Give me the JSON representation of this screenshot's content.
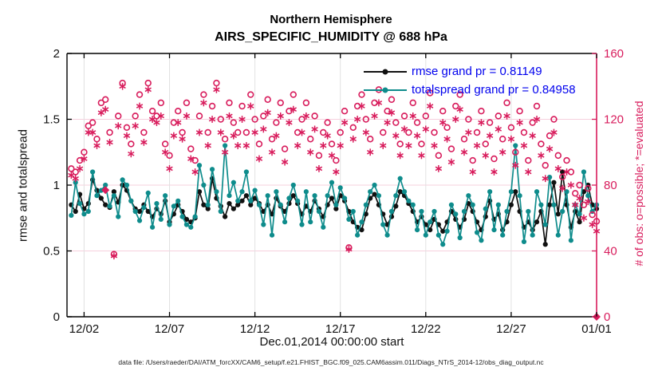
{
  "title": {
    "line1": "Northern Hemisphere",
    "line2": "AIRS_SPECIFIC_HUMIDITY @ 688 hPa"
  },
  "axes": {
    "x_label": "Dec.01,2014 00:00:00 start",
    "left_label": "rmse and totalspread",
    "right_label": "# of obs: o=possible; *=evaluated"
  },
  "legend": {
    "items": [
      {
        "label": "rmse grand pr = 0.81149"
      },
      {
        "label": "totalspread grand pr = 0.84958"
      }
    ]
  },
  "footer": {
    "text": "data file: /Users/raeder/DAI/ATM_forcXX/CAM6_setup/f.e21.FHIST_BGC.f09_025.CAM6assim.011/Diags_NTrS_2014-12/obs_diag_output.nc"
  },
  "colors": {
    "rmse": "#111111",
    "totalspread": "#0e8c8c",
    "obs": "#d81c5c",
    "legend_text": "#0000ee",
    "grid_horizontal": "#f6d0dd",
    "grid_vertical": "#e2e2e2",
    "spine": "#000000"
  },
  "chart_data": {
    "type": "line",
    "title": "Northern Hemisphere — AIRS_SPECIFIC_HUMIDITY @ 688 hPa",
    "xlabel": "Dec.01,2014 00:00:00 start",
    "ylabel_left": "rmse and totalspread",
    "ylabel_right": "# of obs: o=possible; *=evaluated",
    "xlim": [
      0,
      31
    ],
    "ylim_left": [
      0,
      2
    ],
    "ylim_right": [
      0,
      160
    ],
    "grid": true,
    "legend_position": "upper right, no box",
    "x_ticks": [
      {
        "t": 1,
        "label": "12/02"
      },
      {
        "t": 6,
        "label": "12/07"
      },
      {
        "t": 11,
        "label": "12/12"
      },
      {
        "t": 16,
        "label": "12/17"
      },
      {
        "t": 21,
        "label": "12/22"
      },
      {
        "t": 26,
        "label": "12/27"
      },
      {
        "t": 31,
        "label": "01/01"
      }
    ],
    "y_ticks_left": [
      {
        "v": 0,
        "label": "0"
      },
      {
        "v": 0.5,
        "label": "0.5"
      },
      {
        "v": 1,
        "label": "1"
      },
      {
        "v": 1.5,
        "label": "1.5"
      },
      {
        "v": 2,
        "label": "2"
      }
    ],
    "y_ticks_right": [
      {
        "v": 0,
        "label": "0"
      },
      {
        "v": 40,
        "label": "40"
      },
      {
        "v": 80,
        "label": "80"
      },
      {
        "v": 120,
        "label": "120"
      },
      {
        "v": 160,
        "label": "160"
      }
    ],
    "t_start": 0.25,
    "t_step": 0.25,
    "series": [
      {
        "name": "rmse grand pr = 0.81149",
        "axis": "left",
        "marker": "dot",
        "style": "line",
        "values": [
          0.85,
          0.8,
          0.93,
          0.82,
          0.86,
          1.04,
          0.96,
          0.9,
          0.85,
          0.83,
          0.95,
          0.87,
          1.0,
          0.96,
          0.88,
          0.82,
          0.8,
          0.85,
          0.8,
          0.76,
          0.82,
          0.78,
          0.88,
          0.72,
          0.78,
          0.85,
          0.8,
          0.74,
          0.72,
          0.75,
          0.95,
          0.85,
          0.82,
          1.05,
          0.9,
          0.84,
          0.76,
          0.86,
          0.82,
          0.85,
          0.88,
          0.92,
          0.85,
          0.9,
          0.86,
          0.8,
          0.85,
          0.78,
          0.9,
          0.84,
          0.8,
          0.86,
          0.92,
          0.86,
          0.78,
          0.84,
          0.8,
          0.88,
          0.82,
          0.76,
          0.85,
          0.9,
          0.82,
          0.92,
          0.88,
          0.8,
          0.72,
          0.68,
          0.66,
          0.78,
          0.9,
          0.93,
          0.85,
          0.78,
          0.7,
          0.76,
          0.84,
          0.95,
          0.92,
          0.86,
          0.8,
          0.72,
          0.76,
          0.7,
          0.66,
          0.74,
          0.7,
          0.65,
          0.72,
          0.8,
          0.74,
          0.68,
          0.74,
          0.86,
          0.8,
          0.72,
          0.66,
          0.76,
          0.88,
          0.74,
          0.78,
          0.66,
          0.72,
          0.85,
          0.95,
          0.8,
          0.68,
          0.72,
          0.66,
          0.72,
          0.8,
          0.55,
          0.85,
          1.02,
          0.78,
          1.1,
          0.85,
          0.68,
          0.8,
          0.72,
          0.95,
          1.0,
          0.85,
          0.82
        ]
      },
      {
        "name": "totalspread grand pr = 0.84958",
        "axis": "left",
        "marker": "dot",
        "style": "line",
        "values": [
          0.77,
          1.02,
          0.86,
          0.78,
          0.8,
          1.1,
          0.92,
          0.96,
          1.0,
          0.84,
          0.92,
          0.76,
          1.04,
          1.0,
          0.88,
          0.8,
          0.73,
          0.83,
          0.94,
          0.68,
          0.86,
          0.74,
          0.92,
          0.7,
          0.84,
          0.88,
          0.76,
          0.7,
          0.68,
          0.76,
          1.15,
          1.0,
          0.85,
          1.12,
          0.95,
          0.8,
          1.3,
          0.92,
          1.02,
          0.88,
          0.95,
          1.1,
          0.88,
          0.96,
          0.85,
          0.7,
          0.92,
          0.62,
          0.95,
          0.85,
          0.72,
          0.9,
          1.0,
          0.88,
          0.7,
          0.95,
          0.72,
          0.92,
          0.8,
          0.68,
          0.92,
          1.02,
          0.85,
          0.98,
          0.9,
          0.74,
          0.8,
          0.62,
          0.72,
          0.85,
          0.95,
          1.0,
          0.92,
          0.7,
          0.62,
          0.8,
          0.92,
          1.05,
          0.95,
          0.88,
          0.85,
          0.66,
          0.8,
          0.62,
          0.72,
          0.8,
          0.62,
          0.55,
          0.65,
          0.85,
          0.78,
          0.6,
          0.8,
          0.92,
          0.85,
          0.64,
          0.58,
          0.82,
          0.95,
          0.66,
          0.85,
          0.62,
          0.8,
          0.95,
          1.3,
          0.92,
          0.57,
          0.8,
          0.62,
          0.95,
          0.85,
          0.7,
          1.06,
          0.85,
          0.62,
          0.8,
          0.95,
          0.58,
          0.85,
          0.78,
          1.1,
          0.92,
          0.8,
          0.85
        ]
      },
      {
        "name": "N possible (o)",
        "axis": "right",
        "marker": "open-circle",
        "style": "scatter",
        "values": [
          90,
          88,
          95,
          100,
          116,
          118,
          108,
          130,
          132,
          112,
          38,
          122,
          142,
          115,
          105,
          122,
          135,
          112,
          142,
          125,
          122,
          130,
          105,
          98,
          118,
          125,
          112,
          130,
          102,
          95,
          122,
          135,
          112,
          128,
          142,
          120,
          108,
          130,
          118,
          112,
          128,
          112,
          135,
          120,
          105,
          122,
          132,
          108,
          118,
          130,
          102,
          125,
          135,
          112,
          120,
          130,
          108,
          122,
          98,
          112,
          118,
          105,
          95,
          112,
          125,
          42,
          115,
          128,
          135,
          120,
          108,
          130,
          138,
          112,
          125,
          132,
          118,
          105,
          122,
          112,
          130,
          118,
          105,
          122,
          136,
          112,
          98,
          125,
          115,
          102,
          128,
          135,
          108,
          120,
          95,
          112,
          125,
          105,
          118,
          96,
          122,
          108,
          130,
          115,
          100,
          125,
          112,
          95,
          118,
          128,
          105,
          92,
          110,
          120,
          98,
          85,
          95,
          88,
          75,
          80,
          68,
          78,
          62,
          58
        ]
      },
      {
        "name": "N evaluated (*)",
        "axis": "right",
        "marker": "asterisk",
        "style": "scatter",
        "values": [
          86,
          84,
          90,
          96,
          112,
          112,
          104,
          124,
          126,
          106,
          37,
          116,
          140,
          110,
          99,
          116,
          128,
          106,
          138,
          120,
          118,
          122,
          100,
          90,
          110,
          118,
          108,
          122,
          96,
          88,
          112,
          130,
          104,
          120,
          138,
          112,
          100,
          122,
          110,
          104,
          120,
          104,
          128,
          112,
          96,
          114,
          124,
          100,
          110,
          122,
          94,
          118,
          126,
          104,
          112,
          122,
          100,
          114,
          90,
          104,
          110,
          98,
          88,
          104,
          118,
          41,
          108,
          120,
          128,
          112,
          100,
          122,
          130,
          104,
          118,
          124,
          110,
          98,
          114,
          104,
          122,
          110,
          98,
          114,
          128,
          104,
          90,
          118,
          108,
          94,
          120,
          126,
          100,
          112,
          88,
          104,
          118,
          98,
          110,
          88,
          114,
          100,
          122,
          108,
          92,
          118,
          104,
          88,
          110,
          120,
          98,
          84,
          102,
          112,
          90,
          78,
          88,
          80,
          68,
          72,
          60,
          70,
          56,
          52
        ]
      },
      {
        "name": "diamond markers",
        "axis": "right",
        "marker": "diamond",
        "style": "scatter-points",
        "points": [
          [
            2.25,
            77
          ],
          [
            31,
            0
          ]
        ]
      }
    ]
  }
}
